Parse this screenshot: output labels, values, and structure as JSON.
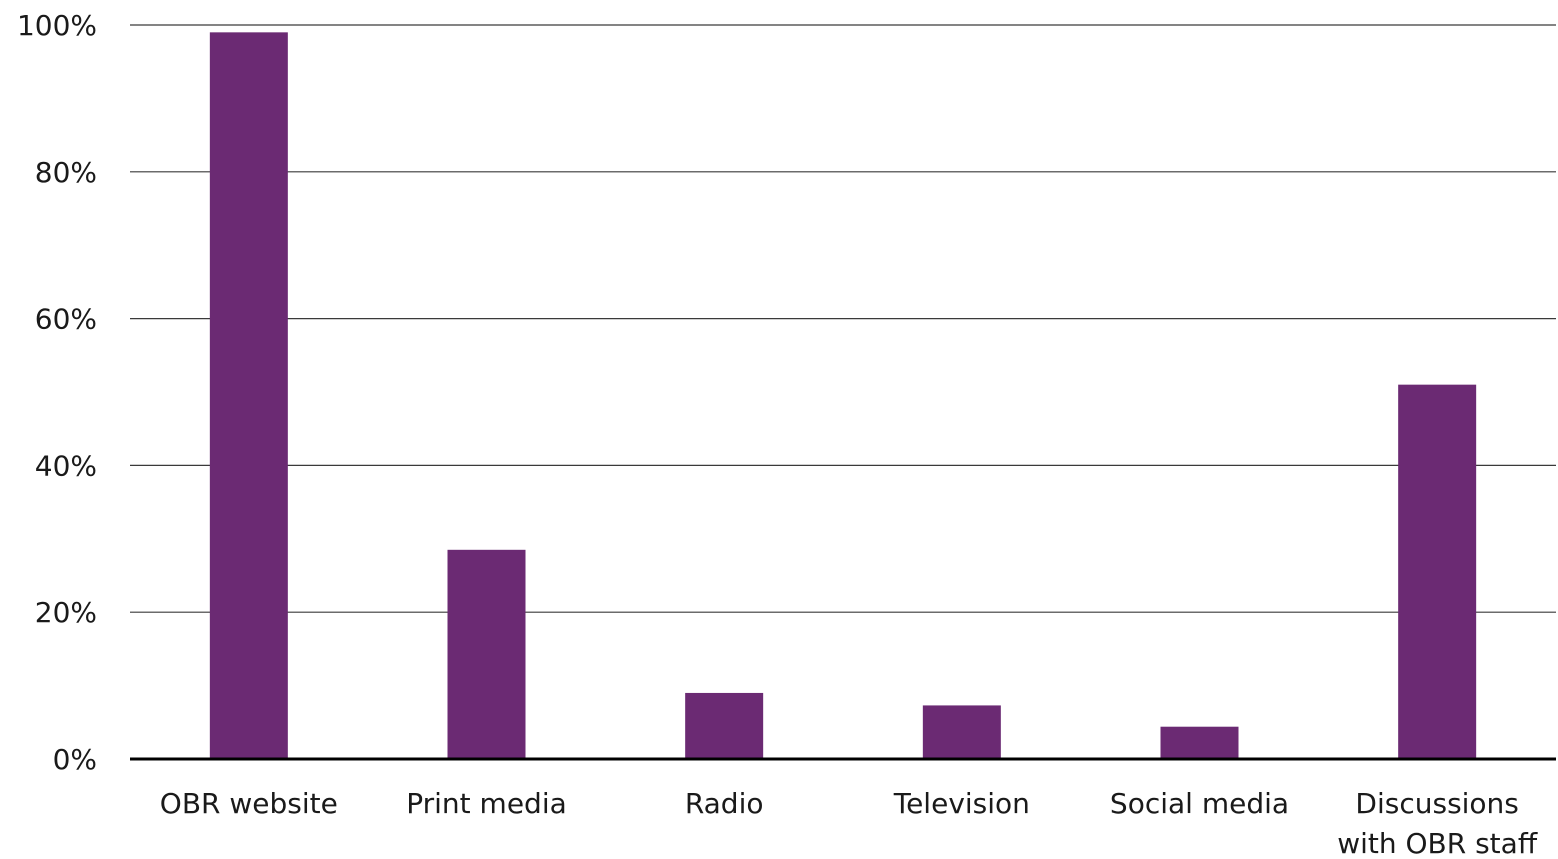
{
  "chart_data": {
    "type": "bar",
    "categories": [
      [
        "OBR website"
      ],
      [
        "Print media"
      ],
      [
        "Radio"
      ],
      [
        "Television"
      ],
      [
        "Social media"
      ],
      [
        "Discussions",
        "with OBR staff"
      ]
    ],
    "values": [
      99,
      28.5,
      9,
      7.3,
      4.4,
      51
    ],
    "ylim": [
      0,
      100
    ],
    "yticks": [
      0,
      20,
      40,
      60,
      80,
      100
    ],
    "ytick_labels": [
      "0%",
      "20%",
      "40%",
      "60%",
      "80%",
      "100%"
    ],
    "title": "",
    "xlabel": "",
    "ylabel": "",
    "grid": true,
    "bar_color": "#6b2a73",
    "axis_color": "#000000",
    "grid_color": "#3a3a3a"
  }
}
